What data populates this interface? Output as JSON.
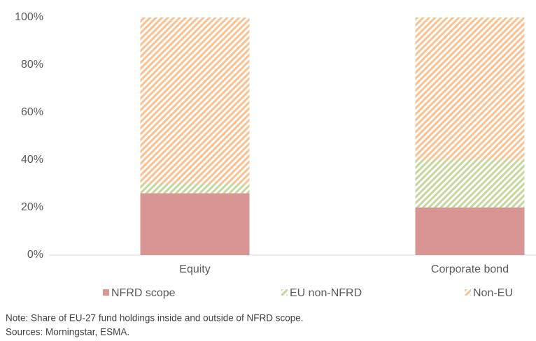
{
  "chart_data": {
    "type": "stacked_bar",
    "categories": [
      "Equity",
      "Corporate bond"
    ],
    "series": [
      {
        "name": "NFRD scope",
        "color": "#d99594",
        "pattern": "solid",
        "values": [
          26,
          20
        ]
      },
      {
        "name": "EU non-NFRD",
        "color": "#c3d69b",
        "pattern": "hatch",
        "values": [
          4,
          20
        ]
      },
      {
        "name": "Non-EU",
        "color": "#fac090",
        "pattern": "hatch",
        "values": [
          70,
          60
        ]
      }
    ],
    "ylim": [
      0,
      100
    ],
    "yticks": [
      {
        "value": 0,
        "label": "0%"
      },
      {
        "value": 20,
        "label": "20%"
      },
      {
        "value": 40,
        "label": "40%"
      },
      {
        "value": 60,
        "label": "60%"
      },
      {
        "value": 80,
        "label": "80%"
      },
      {
        "value": 100,
        "label": "100%"
      }
    ],
    "grid": false,
    "legend": "bottom",
    "note": "Note: Share of EU-27 fund holdings inside and outside of NFRD scope.",
    "source": "Sources: Morningstar, ESMA."
  }
}
